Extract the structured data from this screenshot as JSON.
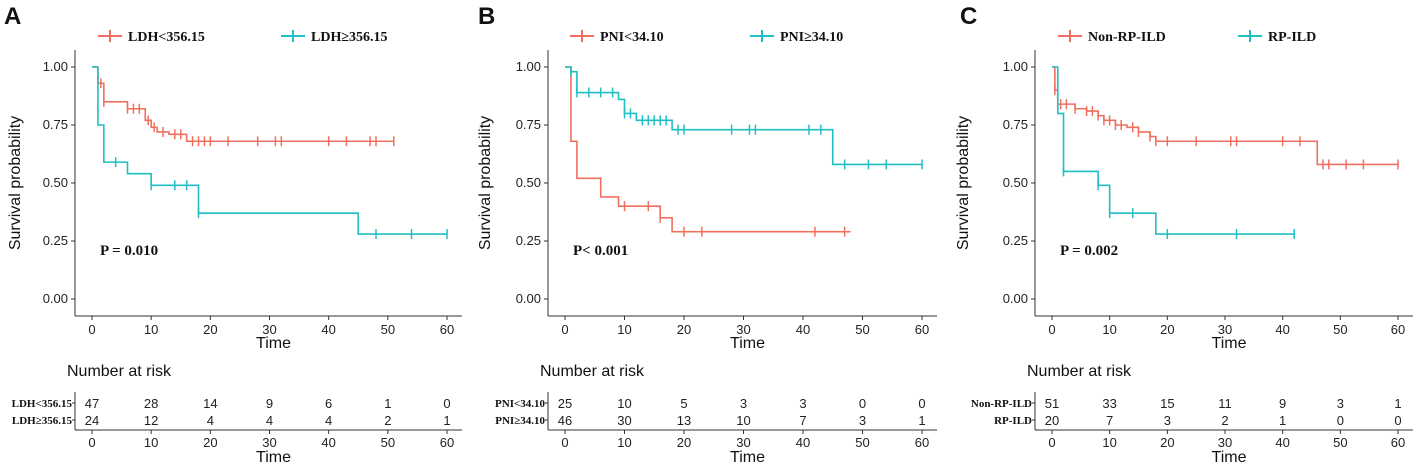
{
  "chart_data": [
    {
      "type": "line",
      "subtype": "kaplan-meier",
      "panel_label": "A",
      "xlabel": "Time",
      "ylabel": "Survival probability",
      "xlim": [
        0,
        60
      ],
      "ylim": [
        0,
        1
      ],
      "x_ticks": [
        "0",
        "10",
        "20",
        "30",
        "40",
        "50",
        "60"
      ],
      "y_ticks": [
        "0.00",
        "0.25",
        "0.50",
        "0.75",
        "1.00"
      ],
      "p_value": "P = 0.010",
      "series": [
        {
          "name": "LDH<356.15",
          "color": "#F07060",
          "steps": [
            [
              0,
              1.0
            ],
            [
              1,
              0.93
            ],
            [
              2,
              0.85
            ],
            [
              6,
              0.82
            ],
            [
              9,
              0.77
            ],
            [
              10,
              0.74
            ],
            [
              11,
              0.72
            ],
            [
              13,
              0.71
            ],
            [
              16,
              0.68
            ],
            [
              51,
              0.68
            ]
          ],
          "censor": [
            1.5,
            2,
            6,
            7,
            8,
            9.5,
            10.5,
            12,
            14,
            15,
            17,
            18,
            19,
            20,
            23,
            28,
            31,
            32,
            40,
            43,
            47,
            48,
            51
          ]
        },
        {
          "name": "LDH≥356.15",
          "color": "#1FBFC4",
          "steps": [
            [
              0,
              1.0
            ],
            [
              1,
              0.75
            ],
            [
              2,
              0.59
            ],
            [
              6,
              0.54
            ],
            [
              10,
              0.49
            ],
            [
              18,
              0.37
            ],
            [
              45,
              0.28
            ],
            [
              60,
              0.28
            ]
          ],
          "censor": [
            4,
            10,
            14,
            16,
            18,
            48,
            54,
            60
          ]
        }
      ],
      "risk_table": {
        "title": "Number at risk",
        "times": [
          "0",
          "10",
          "20",
          "30",
          "40",
          "50",
          "60"
        ],
        "rows": [
          {
            "label": "LDH<356.15",
            "values": [
              "47",
              "28",
              "14",
              "9",
              "6",
              "1",
              "0"
            ]
          },
          {
            "label": "LDH≥356.15",
            "values": [
              "24",
              "12",
              "4",
              "4",
              "4",
              "2",
              "1"
            ]
          }
        ]
      }
    },
    {
      "type": "line",
      "subtype": "kaplan-meier",
      "panel_label": "B",
      "xlabel": "Time",
      "ylabel": "Survival probability",
      "xlim": [
        0,
        60
      ],
      "ylim": [
        0,
        1
      ],
      "x_ticks": [
        "0",
        "10",
        "20",
        "30",
        "40",
        "50",
        "60"
      ],
      "y_ticks": [
        "0.00",
        "0.25",
        "0.50",
        "0.75",
        "1.00"
      ],
      "p_value": "P< 0.001",
      "series": [
        {
          "name": "PNI<34.10",
          "color": "#F07060",
          "steps": [
            [
              0,
              1.0
            ],
            [
              1,
              0.68
            ],
            [
              2,
              0.52
            ],
            [
              6,
              0.44
            ],
            [
              9,
              0.4
            ],
            [
              16,
              0.35
            ],
            [
              18,
              0.29
            ],
            [
              48,
              0.29
            ]
          ],
          "censor": [
            10,
            14,
            16,
            20,
            23,
            42,
            47
          ]
        },
        {
          "name": "PNI≥34.10",
          "color": "#1FBFC4",
          "steps": [
            [
              0,
              1.0
            ],
            [
              1,
              0.98
            ],
            [
              2,
              0.89
            ],
            [
              9,
              0.86
            ],
            [
              10,
              0.8
            ],
            [
              12,
              0.77
            ],
            [
              18,
              0.73
            ],
            [
              45,
              0.58
            ],
            [
              60,
              0.58
            ]
          ],
          "censor": [
            1,
            2,
            4,
            6,
            8,
            10,
            11,
            13,
            14,
            15,
            16,
            17,
            19,
            20,
            28,
            31,
            32,
            41,
            43,
            47,
            51,
            54,
            60
          ]
        }
      ],
      "risk_table": {
        "title": "Number at risk",
        "times": [
          "0",
          "10",
          "20",
          "30",
          "40",
          "50",
          "60"
        ],
        "rows": [
          {
            "label": "PNI<34.10",
            "values": [
              "25",
              "10",
              "5",
              "3",
              "3",
              "0",
              "0"
            ]
          },
          {
            "label": "PNI≥34.10",
            "values": [
              "46",
              "30",
              "13",
              "10",
              "7",
              "3",
              "1"
            ]
          }
        ]
      }
    },
    {
      "type": "line",
      "subtype": "kaplan-meier",
      "panel_label": "C",
      "xlabel": "Time",
      "ylabel": "Survival probability",
      "xlim": [
        0,
        60
      ],
      "ylim": [
        0,
        1
      ],
      "x_ticks": [
        "0",
        "10",
        "20",
        "30",
        "40",
        "50",
        "60"
      ],
      "y_ticks": [
        "0.00",
        "0.25",
        "0.50",
        "0.75",
        "1.00"
      ],
      "p_value": "P = 0.002",
      "series": [
        {
          "name": "Non-RP-ILD",
          "color": "#F07060",
          "steps": [
            [
              0,
              1.0
            ],
            [
              0.5,
              0.9
            ],
            [
              1,
              0.84
            ],
            [
              4,
              0.82
            ],
            [
              6,
              0.81
            ],
            [
              8,
              0.79
            ],
            [
              9,
              0.77
            ],
            [
              11,
              0.75
            ],
            [
              13,
              0.74
            ],
            [
              15,
              0.72
            ],
            [
              17,
              0.7
            ],
            [
              18,
              0.68
            ],
            [
              46,
              0.58
            ],
            [
              60,
              0.58
            ]
          ],
          "censor": [
            0.5,
            1.5,
            2.5,
            4,
            6,
            7,
            8,
            9,
            10,
            11,
            12,
            14,
            15,
            17,
            18,
            20,
            25,
            31,
            32,
            40,
            43,
            47,
            48,
            51,
            54,
            60
          ]
        },
        {
          "name": "RP-ILD",
          "color": "#1FBFC4",
          "steps": [
            [
              0,
              1.0
            ],
            [
              1,
              0.8
            ],
            [
              2,
              0.55
            ],
            [
              8,
              0.49
            ],
            [
              10,
              0.37
            ],
            [
              18,
              0.28
            ],
            [
              42,
              0.28
            ]
          ],
          "censor": [
            2,
            8,
            10,
            14,
            20,
            32,
            42
          ]
        }
      ],
      "risk_table": {
        "title": "Number at risk",
        "times": [
          "0",
          "10",
          "20",
          "30",
          "40",
          "50",
          "60"
        ],
        "rows": [
          {
            "label": "Non-RP-ILD",
            "values": [
              "51",
              "33",
              "15",
              "11",
              "9",
              "3",
              "1"
            ]
          },
          {
            "label": "RP-ILD",
            "values": [
              "20",
              "7",
              "3",
              "2",
              "1",
              "0",
              "0"
            ]
          }
        ]
      }
    }
  ]
}
